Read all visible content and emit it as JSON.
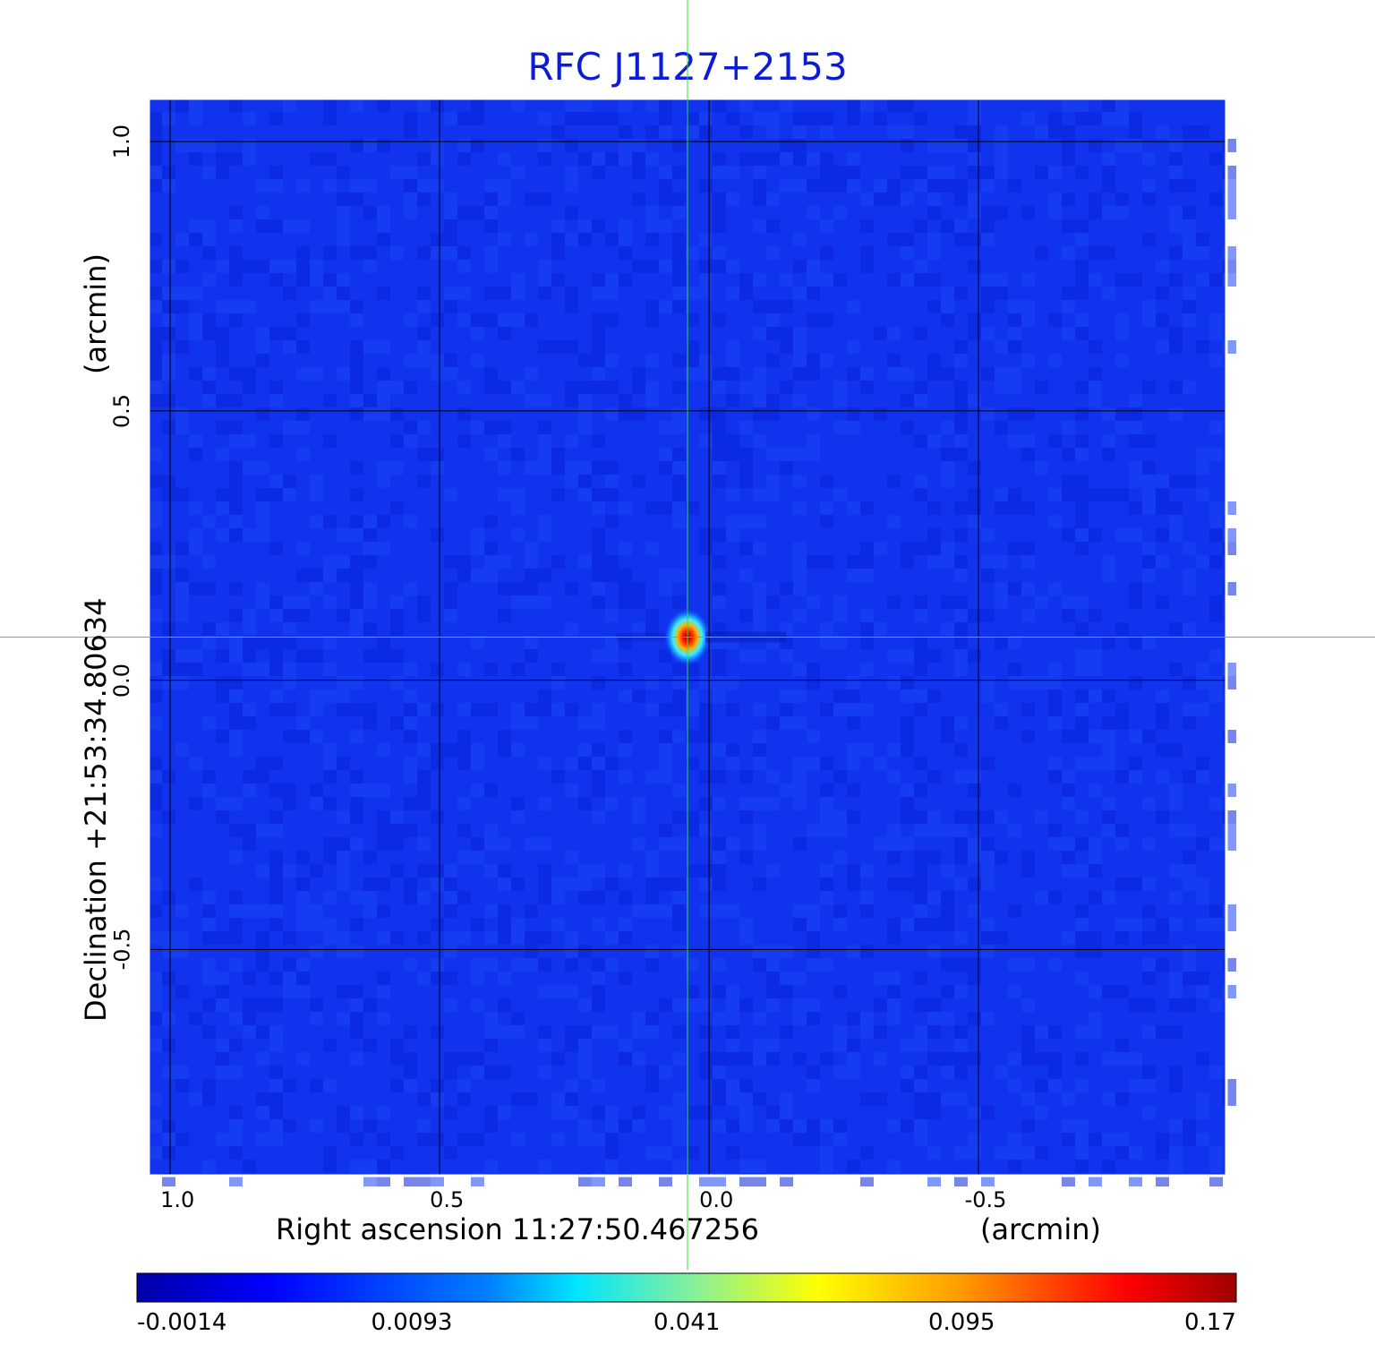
{
  "chart_data": {
    "type": "heatmap",
    "title": "RFC J1127+2153",
    "xlabel_left": "Right ascension  11:27:50.467256",
    "xlabel_unit": "(arcmin)",
    "ylabel_left": "Declination  +21:53:34.80634",
    "ylabel_unit": "(arcmin)",
    "xlim": [
      1.04,
      -0.96
    ],
    "ylim": [
      -0.92,
      1.08
    ],
    "xticks": [
      {
        "value": 1.0,
        "label": "1.0"
      },
      {
        "value": 0.5,
        "label": "0.5"
      },
      {
        "value": 0.0,
        "label": "0.0"
      },
      {
        "value": -0.5,
        "label": "-0.5"
      }
    ],
    "yticks": [
      {
        "value": 1.0,
        "label": "1.0"
      },
      {
        "value": 0.5,
        "label": "0.5"
      },
      {
        "value": 0.0,
        "label": "0.0"
      },
      {
        "value": -0.5,
        "label": "-0.5"
      }
    ],
    "grid": true,
    "background_value": -0.0014,
    "source_peak": {
      "ra_offset": 0.04,
      "dec_offset": 0.08,
      "value": 0.17
    },
    "crosshair": {
      "ra_offset": 0.04,
      "dec_offset": 0.08
    },
    "colorbar": {
      "scale": "log",
      "ticks": [
        "-0.0014",
        "0.0093",
        "0.041",
        "0.095",
        "0.17"
      ],
      "colormap": "jet"
    }
  },
  "colors": {
    "title": "#0b1bd8",
    "background_field": "#1133ee",
    "grid": "#000000",
    "crosshair": "#33dd33"
  }
}
